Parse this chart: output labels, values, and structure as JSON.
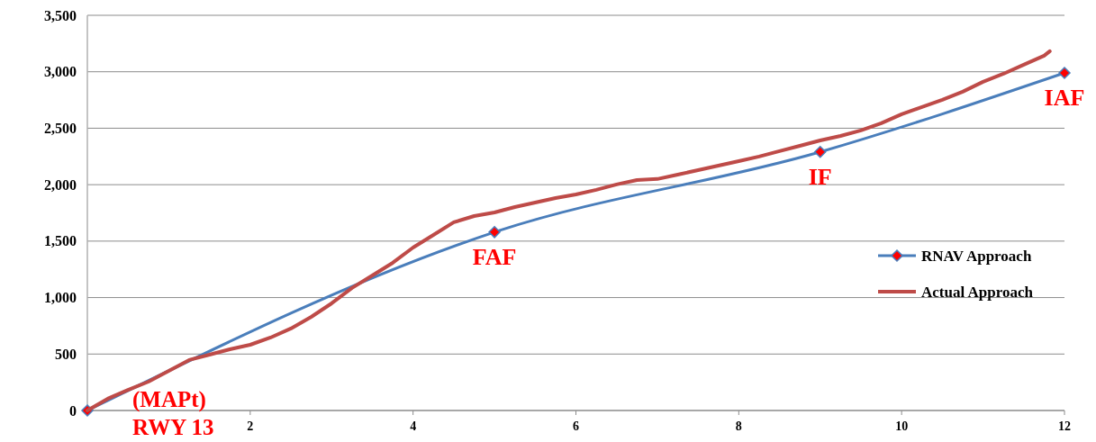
{
  "chart_data": {
    "type": "line",
    "xlim": [
      0,
      12
    ],
    "ylim": [
      0,
      3500
    ],
    "xticks": [
      2,
      4,
      6,
      8,
      10,
      12
    ],
    "yticks": [
      0,
      500,
      {
        "value": 1000,
        "label": "1,000"
      },
      {
        "value": 1500,
        "label": "1,500"
      },
      {
        "value": 2000,
        "label": "2,000"
      },
      {
        "value": 2500,
        "label": "2,500"
      },
      {
        "value": 3000,
        "label": "3,000"
      },
      {
        "value": 3500,
        "label": "3,500"
      }
    ],
    "grid": "y",
    "legend": "right",
    "line_style": "solid",
    "series": [
      {
        "name": "RNAV Approach",
        "color": "#4a7ebb",
        "marker": "diamond",
        "x": [
          0,
          5,
          9,
          12
        ],
        "values": [
          0,
          1580,
          2290,
          2990
        ]
      },
      {
        "name": "Actual Approach",
        "color": "#be4b48",
        "marker": "none",
        "x": [
          0,
          0.25,
          0.5,
          0.75,
          1,
          1.25,
          1.5,
          1.75,
          2,
          2.25,
          2.5,
          2.75,
          3,
          3.25,
          3.5,
          3.75,
          4,
          4.25,
          4.5,
          4.75,
          5,
          5.25,
          5.5,
          5.75,
          6,
          6.25,
          6.5,
          6.75,
          7,
          7.25,
          7.5,
          7.75,
          8,
          8.25,
          8.5,
          8.75,
          9,
          9.25,
          9.5,
          9.75,
          10,
          10.25,
          10.5,
          10.75,
          11,
          11.25,
          11.5,
          11.75,
          11.82
        ],
        "values": [
          0,
          104,
          183,
          255,
          351,
          447,
          494,
          542,
          582,
          646,
          726,
          829,
          949,
          1085,
          1196,
          1308,
          1443,
          1555,
          1667,
          1722,
          1754,
          1802,
          1842,
          1882,
          1914,
          1954,
          2002,
          2041,
          2050,
          2089,
          2129,
          2169,
          2209,
          2249,
          2297,
          2344,
          2392,
          2432,
          2480,
          2544,
          2624,
          2687,
          2751,
          2823,
          2911,
          2982,
          3062,
          3142,
          3182
        ]
      }
    ],
    "annotations": [
      {
        "text": "(MAPt)",
        "x": 0,
        "y": 0
      },
      {
        "text": "RWY 13",
        "x": 0,
        "y": 0
      },
      {
        "text": "FAF",
        "x": 5,
        "y": 1580
      },
      {
        "text": "IF",
        "x": 9,
        "y": 2290
      },
      {
        "text": "IAF",
        "x": 12,
        "y": 2990
      }
    ]
  }
}
